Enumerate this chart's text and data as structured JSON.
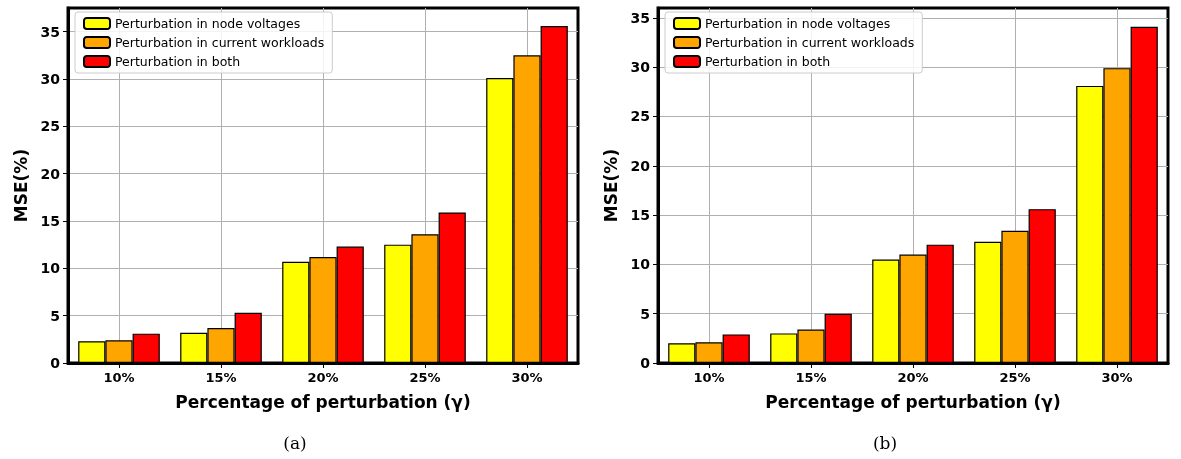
{
  "chart_data": [
    {
      "type": "bar",
      "xlabel": "Percentage of perturbation (γ)",
      "ylabel": "MSE(%)",
      "categories": [
        "10%",
        "15%",
        "20%",
        "25%",
        "30%"
      ],
      "series": [
        {
          "name": "Perturbation in node voltages",
          "color": "#ffff00",
          "values": [
            2.3,
            3.2,
            10.7,
            12.5,
            30.1
          ]
        },
        {
          "name": "Perturbation in current workloads",
          "color": "#ffa500",
          "values": [
            2.4,
            3.7,
            11.2,
            13.6,
            32.5
          ]
        },
        {
          "name": "Perturbation in both",
          "color": "#ff0000",
          "values": [
            3.1,
            5.3,
            12.3,
            15.9,
            35.6
          ]
        }
      ],
      "ylim": [
        0,
        37.5
      ],
      "yticks": [
        0,
        5,
        10,
        15,
        20,
        25,
        30,
        35
      ],
      "grid": true,
      "legend": "top left",
      "annotations": [
        "(a)"
      ]
    },
    {
      "type": "bar",
      "xlabel": "Percentage of perturbation (γ)",
      "ylabel": "MSE(%)",
      "categories": [
        "10%",
        "15%",
        "20%",
        "25%",
        "30%"
      ],
      "series": [
        {
          "name": "Perturbation in node voltages",
          "color": "#ffff00",
          "values": [
            2.0,
            3.0,
            10.5,
            12.3,
            28.1
          ]
        },
        {
          "name": "Perturbation in current workloads",
          "color": "#ffa500",
          "values": [
            2.1,
            3.4,
            11.0,
            13.4,
            29.9
          ]
        },
        {
          "name": "Perturbation in both",
          "color": "#ff0000",
          "values": [
            2.9,
            5.0,
            12.0,
            15.6,
            34.1
          ]
        }
      ],
      "ylim": [
        0,
        36
      ],
      "yticks": [
        0,
        5,
        10,
        15,
        20,
        25,
        30,
        35
      ],
      "grid": true,
      "legend": "top left",
      "annotations": [
        "(b)"
      ]
    }
  ]
}
